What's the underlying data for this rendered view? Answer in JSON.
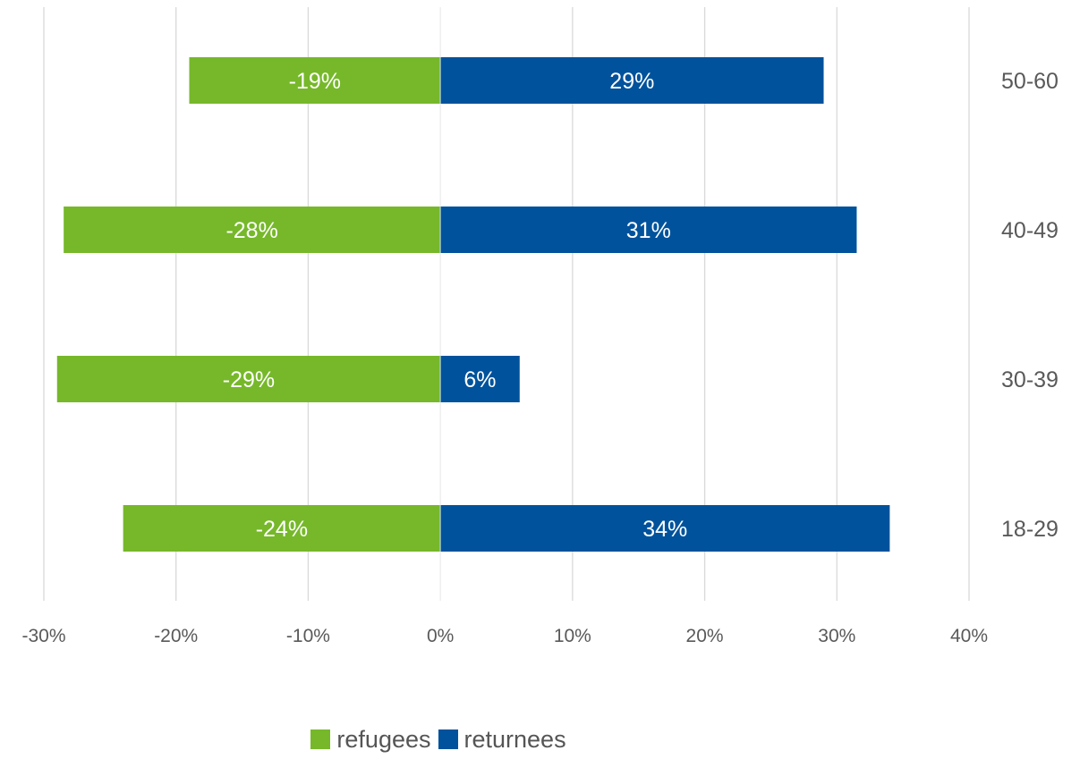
{
  "chart_data": {
    "type": "bar",
    "orientation": "horizontal",
    "title": "",
    "xlabel": "",
    "ylabel": "",
    "categories": [
      "50-60",
      "40-49",
      "30-39",
      "18-29"
    ],
    "series": [
      {
        "name": "refugees",
        "color": "#76b82a",
        "values": [
          -19,
          -28.5,
          -29,
          -24
        ],
        "labels": [
          "-19%",
          "-28%",
          "-29%",
          "-24%"
        ]
      },
      {
        "name": "returnees",
        "color": "#00529c",
        "values": [
          29,
          31.5,
          6,
          34
        ],
        "labels": [
          "29%",
          "31%",
          "6%",
          "34%"
        ]
      }
    ],
    "xlim": [
      -30,
      40
    ],
    "xticks": [
      -30,
      -20,
      -10,
      0,
      10,
      20,
      30,
      40
    ],
    "xtick_labels": [
      "-30%",
      "-20%",
      "-10%",
      "0%",
      "10%",
      "20%",
      "30%",
      "40%"
    ],
    "grid": "vertical",
    "stacked": true,
    "legend_position": "bottom",
    "category_label_position": "right"
  },
  "legend": {
    "refugees": "refugees",
    "returnees": "returnees"
  }
}
